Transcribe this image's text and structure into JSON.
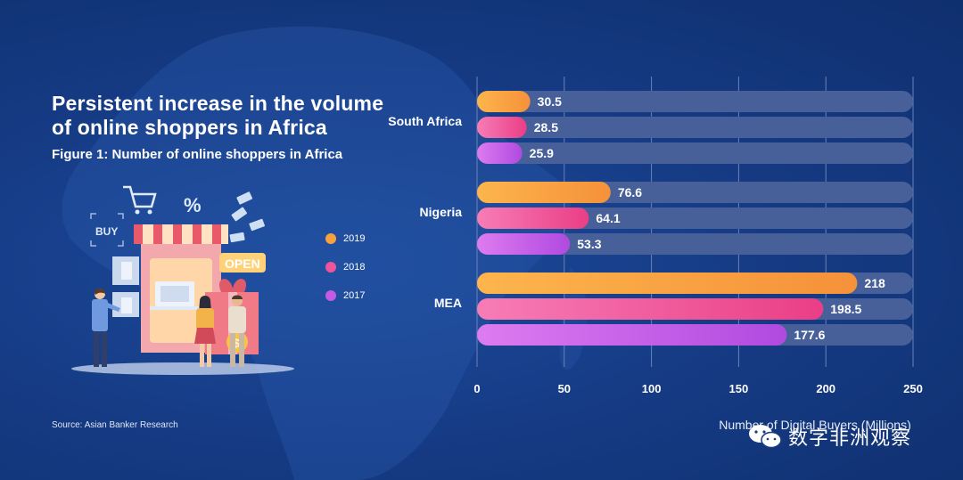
{
  "header": {
    "title": "Persistent increase in the volume of online shoppers in Africa",
    "subtitle": "Figure 1: Number of online shoppers in Africa"
  },
  "illustration": {
    "buy_label": "BUY",
    "open_label": "OPEN",
    "percent_label": "%"
  },
  "footer": {
    "source": "Source: Asian Banker Research"
  },
  "watermark": {
    "text": "数字非洲观察"
  },
  "colors": {
    "2019": "#f7a23e",
    "2018": "#f0549a",
    "2017": "#c35be6",
    "track": "#48609a",
    "background": "#163c86"
  },
  "chart_data": {
    "type": "bar",
    "orientation": "horizontal",
    "title": "Figure 1: Number of online shoppers in Africa",
    "xlabel": "Number of Digital Buyers (Millions)",
    "ylabel": "",
    "xlim": [
      0,
      250
    ],
    "xticks": [
      0,
      50,
      100,
      150,
      200,
      250
    ],
    "grid": true,
    "legend_position": "left",
    "categories": [
      "South Africa",
      "Nigeria",
      "MEA"
    ],
    "series": [
      {
        "name": "2019",
        "values": [
          30.5,
          76.6,
          218
        ]
      },
      {
        "name": "2018",
        "values": [
          28.5,
          64.1,
          198.5
        ]
      },
      {
        "name": "2017",
        "values": [
          25.9,
          53.3,
          177.6
        ]
      }
    ]
  }
}
